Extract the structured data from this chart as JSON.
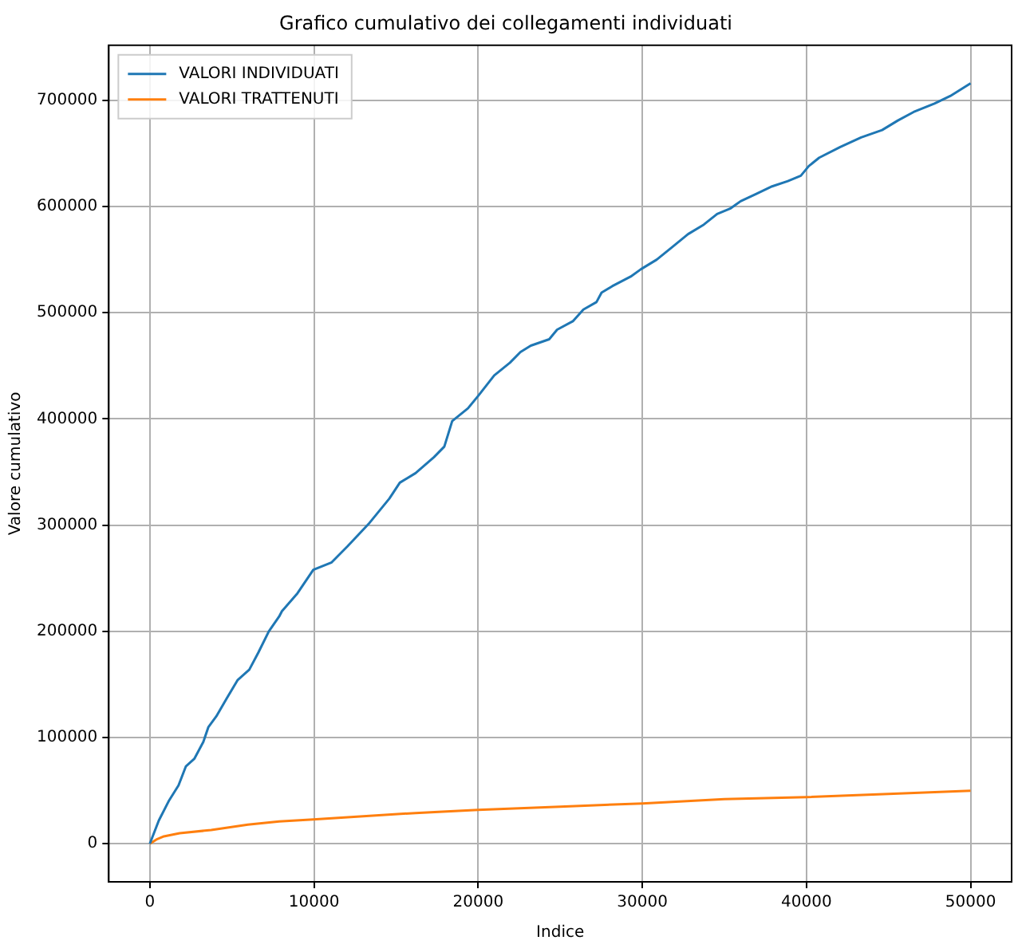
{
  "chart_data": {
    "type": "line",
    "title": "Grafico cumulativo dei collegamenti individuati",
    "xlabel": "Indice",
    "ylabel": "Valore cumulativo",
    "xlim": [
      -2500,
      52500
    ],
    "ylim": [
      -35800,
      751800
    ],
    "xticks": [
      0,
      10000,
      20000,
      30000,
      40000,
      50000
    ],
    "yticks": [
      0,
      100000,
      200000,
      300000,
      400000,
      500000,
      600000,
      700000
    ],
    "grid": true,
    "legend": "top left",
    "marker": "none",
    "line_style": "solid",
    "series": [
      {
        "name": "VALORI INDIVIDUATI",
        "color": "#1f77b4",
        "x": [
          0,
          550,
          1180,
          1750,
          2200,
          2710,
          3260,
          3570,
          4050,
          4690,
          5340,
          6060,
          6610,
          7250,
          7880,
          8050,
          9000,
          9960,
          11080,
          12040,
          13320,
          14590,
          15230,
          16190,
          17310,
          17940,
          18420,
          19380,
          20020,
          20980,
          21940,
          22580,
          23210,
          24330,
          24810,
          25770,
          26410,
          27210,
          27520,
          28170,
          29290,
          29920,
          30880,
          31840,
          32790,
          33750,
          34560,
          35350,
          35990,
          36950,
          37910,
          38870,
          39660,
          40140,
          40780,
          42060,
          43330,
          44610,
          45570,
          46530,
          47800,
          48760,
          50000
        ],
        "values": [
          0,
          22000,
          41000,
          55000,
          73000,
          80000,
          96000,
          110000,
          120000,
          137000,
          154000,
          164000,
          180000,
          200000,
          214000,
          219000,
          236000,
          258000,
          265000,
          280000,
          301000,
          325000,
          340000,
          349000,
          364000,
          374000,
          398000,
          410000,
          422000,
          441000,
          453000,
          463000,
          469000,
          475000,
          484000,
          492000,
          503000,
          510000,
          519000,
          525000,
          534000,
          541000,
          550000,
          562000,
          574000,
          583000,
          593000,
          598000,
          605000,
          612000,
          619000,
          624000,
          629000,
          638000,
          646000,
          656000,
          665000,
          672000,
          681000,
          689000,
          697000,
          704000,
          716000
        ]
      },
      {
        "name": "VALORI TRATTENUTI",
        "color": "#ff7f0e",
        "x": [
          0,
          400,
          860,
          1820,
          3740,
          5970,
          7880,
          9960,
          13000,
          16190,
          20000,
          25000,
          30000,
          35000,
          40000,
          45000,
          50000
        ],
        "values": [
          0,
          4000,
          7000,
          10000,
          13000,
          18000,
          21000,
          23000,
          26000,
          29000,
          32000,
          35000,
          38000,
          42000,
          44000,
          47000,
          50000
        ]
      }
    ]
  }
}
